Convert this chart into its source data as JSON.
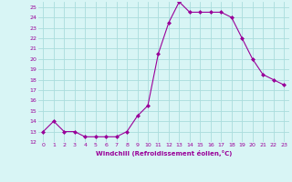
{
  "x": [
    0,
    1,
    2,
    3,
    4,
    5,
    6,
    7,
    8,
    9,
    10,
    11,
    12,
    13,
    14,
    15,
    16,
    17,
    18,
    19,
    20,
    21,
    22,
    23
  ],
  "y": [
    13,
    14,
    13,
    13,
    12.5,
    12.5,
    12.5,
    12.5,
    13,
    14.5,
    15.5,
    20.5,
    23.5,
    25.5,
    24.5,
    24.5,
    24.5,
    24.5,
    24,
    22,
    20,
    18.5,
    18,
    17.5
  ],
  "line_color": "#990099",
  "marker": "D",
  "marker_size": 2,
  "bg_color": "#d8f5f5",
  "grid_color": "#aadddd",
  "xlabel": "Windchill (Refroidissement éolien,°C)",
  "xlabel_color": "#990099",
  "tick_color": "#990099",
  "ylim": [
    12,
    25.5
  ],
  "yticks": [
    12,
    13,
    14,
    15,
    16,
    17,
    18,
    19,
    20,
    21,
    22,
    23,
    24,
    25
  ],
  "xlim": [
    -0.5,
    23.5
  ],
  "xticks": [
    0,
    1,
    2,
    3,
    4,
    5,
    6,
    7,
    8,
    9,
    10,
    11,
    12,
    13,
    14,
    15,
    16,
    17,
    18,
    19,
    20,
    21,
    22,
    23
  ]
}
